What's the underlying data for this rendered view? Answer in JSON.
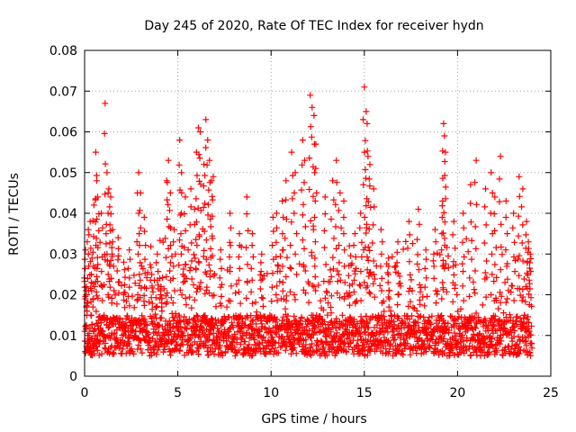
{
  "chart_data": {
    "type": "scatter",
    "title": "Day 245 of 2020, Rate Of TEC Index for receiver hydn",
    "xlabel": "GPS time / hours",
    "ylabel": "ROTI / TECUs",
    "xlim": [
      0,
      25
    ],
    "ylim": [
      0,
      0.08
    ],
    "x_ticks": [
      "0",
      "5",
      "10",
      "15",
      "20",
      "25"
    ],
    "y_ticks": [
      "0",
      "0.01",
      "0.02",
      "0.03",
      "0.04",
      "0.05",
      "0.06",
      "0.07",
      "0.08"
    ],
    "grid": true,
    "legend": "none",
    "marker": "plus",
    "color": "#ff0000",
    "baseline_range": [
      0.005,
      0.015
    ],
    "points": [
      [
        0.05,
        0.031
      ],
      [
        0.1,
        0.022
      ],
      [
        0.2,
        0.036
      ],
      [
        0.3,
        0.038
      ],
      [
        0.4,
        0.029
      ],
      [
        0.5,
        0.042
      ],
      [
        0.6,
        0.055
      ],
      [
        0.65,
        0.048
      ],
      [
        0.7,
        0.044
      ],
      [
        0.9,
        0.04
      ],
      [
        1.1,
        0.067
      ],
      [
        1.2,
        0.05
      ],
      [
        1.3,
        0.046
      ],
      [
        1.4,
        0.044
      ],
      [
        1.5,
        0.036
      ],
      [
        1.8,
        0.034
      ],
      [
        2.1,
        0.028
      ],
      [
        2.4,
        0.031
      ],
      [
        2.9,
        0.05
      ],
      [
        3.0,
        0.045
      ],
      [
        3.2,
        0.039
      ],
      [
        3.6,
        0.025
      ],
      [
        3.9,
        0.03
      ],
      [
        4.1,
        0.022
      ],
      [
        4.4,
        0.048
      ],
      [
        4.5,
        0.053
      ],
      [
        4.6,
        0.045
      ],
      [
        4.8,
        0.036
      ],
      [
        5.1,
        0.058
      ],
      [
        5.2,
        0.05
      ],
      [
        5.4,
        0.044
      ],
      [
        5.7,
        0.046
      ],
      [
        5.9,
        0.041
      ],
      [
        6.0,
        0.055
      ],
      [
        6.1,
        0.061
      ],
      [
        6.2,
        0.06
      ],
      [
        6.4,
        0.052
      ],
      [
        6.5,
        0.063
      ],
      [
        6.6,
        0.058
      ],
      [
        6.7,
        0.053
      ],
      [
        6.8,
        0.048
      ],
      [
        6.9,
        0.049
      ],
      [
        7.3,
        0.031
      ],
      [
        7.8,
        0.04
      ],
      [
        8.3,
        0.035
      ],
      [
        8.7,
        0.044
      ],
      [
        9.0,
        0.035
      ],
      [
        9.5,
        0.03
      ],
      [
        10.1,
        0.039
      ],
      [
        10.3,
        0.04
      ],
      [
        10.6,
        0.043
      ],
      [
        10.8,
        0.048
      ],
      [
        11.1,
        0.055
      ],
      [
        11.3,
        0.05
      ],
      [
        11.7,
        0.058
      ],
      [
        11.8,
        0.053
      ],
      [
        12.1,
        0.069
      ],
      [
        12.2,
        0.066
      ],
      [
        12.3,
        0.064
      ],
      [
        12.4,
        0.057
      ],
      [
        12.9,
        0.044
      ],
      [
        13.3,
        0.048
      ],
      [
        13.5,
        0.053
      ],
      [
        13.7,
        0.045
      ],
      [
        13.9,
        0.043
      ],
      [
        14.2,
        0.032
      ],
      [
        14.5,
        0.035
      ],
      [
        14.8,
        0.04
      ],
      [
        15.0,
        0.071
      ],
      [
        15.1,
        0.065
      ],
      [
        15.15,
        0.062
      ],
      [
        15.2,
        0.054
      ],
      [
        15.3,
        0.052
      ],
      [
        15.5,
        0.046
      ],
      [
        15.9,
        0.036
      ],
      [
        16.3,
        0.029
      ],
      [
        16.8,
        0.033
      ],
      [
        17.4,
        0.038
      ],
      [
        17.9,
        0.041
      ],
      [
        18.3,
        0.031
      ],
      [
        18.8,
        0.036
      ],
      [
        19.2,
        0.043
      ],
      [
        19.25,
        0.062
      ],
      [
        19.3,
        0.059
      ],
      [
        19.35,
        0.055
      ],
      [
        19.8,
        0.038
      ],
      [
        20.3,
        0.04
      ],
      [
        20.7,
        0.047
      ],
      [
        21.0,
        0.053
      ],
      [
        21.5,
        0.046
      ],
      [
        21.8,
        0.05
      ],
      [
        22.0,
        0.044
      ],
      [
        22.3,
        0.054
      ],
      [
        22.6,
        0.043
      ],
      [
        23.0,
        0.04
      ],
      [
        23.3,
        0.049
      ],
      [
        23.5,
        0.046
      ],
      [
        23.7,
        0.038
      ],
      [
        23.8,
        0.033
      ],
      [
        23.9,
        0.03
      ]
    ]
  }
}
